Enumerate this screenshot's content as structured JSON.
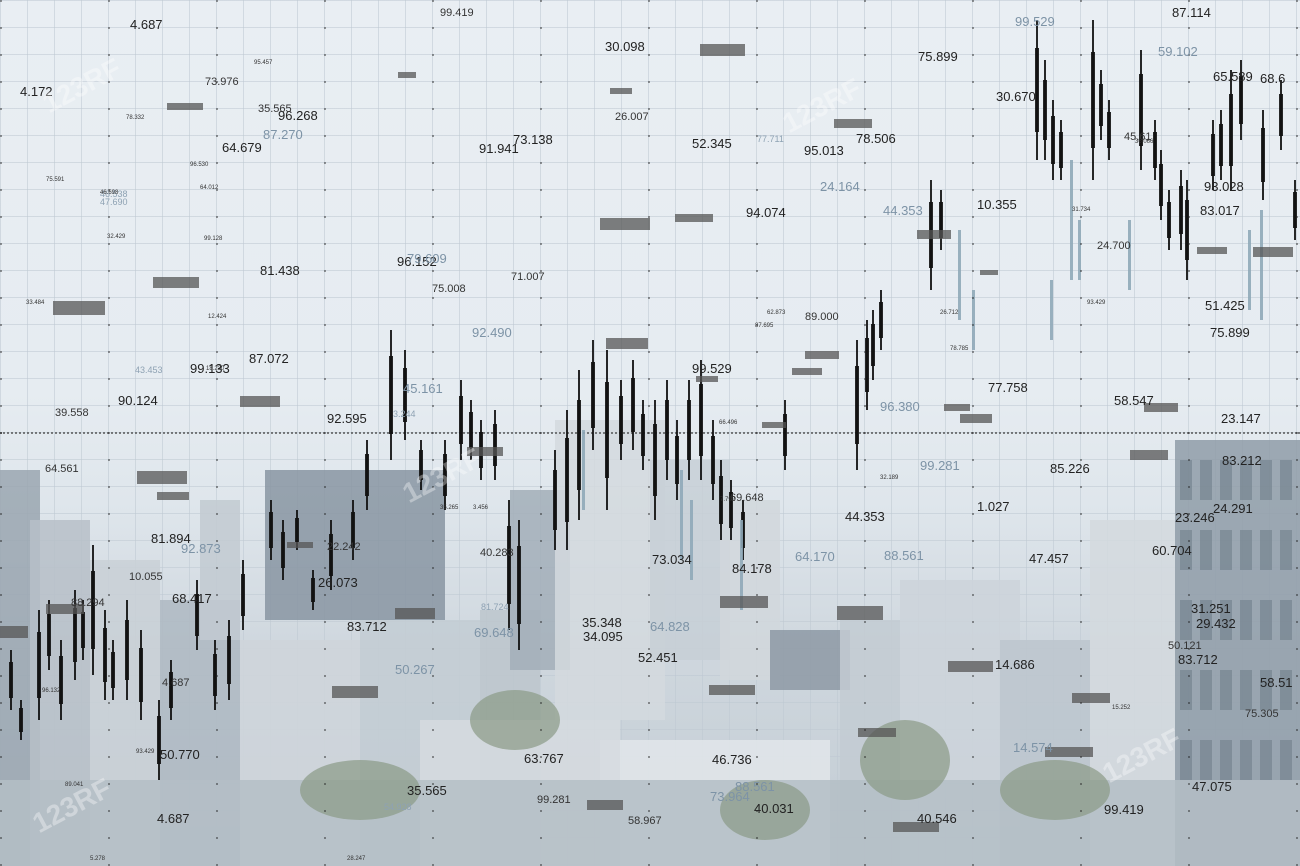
{
  "image": {
    "subject": "Double-exposure stock photo: a candlestick trading chart with scattered figures overlaid on a hazy aerial city skyline",
    "watermark": "123RF",
    "colors": {
      "sky": "#e8edf2",
      "candle": "#111111",
      "faded_candle": "#8fa9b8",
      "grid": "#c3ccd5"
    }
  },
  "overlay_numbers": {
    "large": [
      "4.687",
      "99.419",
      "30.098",
      "99.529",
      "87.114",
      "59.102",
      "65.589",
      "68.6",
      "4.172",
      "73.976",
      "75.899",
      "30.670",
      "96.268",
      "35.565",
      "87.270",
      "64.679",
      "73.138",
      "26.007",
      "52.345",
      "95.013",
      "78.506",
      "45.61",
      "91.941",
      "24.164",
      "94.074",
      "44.353",
      "10.355",
      "93.028",
      "83.017",
      "24.700",
      "81.438",
      "96.152",
      "79.609",
      "71.007",
      "51.425",
      "75.899",
      "92.490",
      "89.000",
      "99.529",
      "99.133",
      "87.072",
      "45.161",
      "77.758",
      "58.547",
      "90.124",
      "39.558",
      "92.595",
      "96.380",
      "23.147",
      "64.561",
      "99.281",
      "85.226",
      "83.212",
      "69.648",
      "24.291",
      "23.246",
      "81.894",
      "22.242",
      "64.170",
      "88.561",
      "47.457",
      "10.055",
      "26.073",
      "84.178",
      "68.417",
      "88.294",
      "31.251",
      "83.712",
      "69.648",
      "64.828",
      "35.348",
      "52.451",
      "14.686",
      "4.687",
      "50.770",
      "63.767",
      "46.736",
      "14.574",
      "58.51",
      "35.565",
      "88.561",
      "99.281",
      "47.075",
      "4.687",
      "99.419",
      "40.283",
      "73.964",
      "40.031",
      "40.546",
      "58.967",
      "34.095",
      "50.267",
      "73.034",
      "75.008",
      "44.353",
      "92.873",
      "1.027",
      "50.121",
      "83.712",
      "29.432",
      "60.704",
      "75.305"
    ],
    "small": [
      "95.457",
      "75.591",
      "46.538",
      "32.429",
      "33.484",
      "99.128",
      "12.424",
      "77.711",
      "96.530",
      "18.230",
      "46.698",
      "64.012",
      "47.690",
      "78.332",
      "66.496",
      "87.695",
      "62.873",
      "3.244",
      "3.456",
      "35.265",
      "26.712",
      "32.189",
      "81.724",
      "93.429",
      "89.041",
      "96.132",
      "93.429",
      "54.928",
      "28.247",
      "5.278",
      "15.252",
      "78.785",
      "43.453",
      "7.792",
      "31.734",
      "36.066"
    ]
  }
}
